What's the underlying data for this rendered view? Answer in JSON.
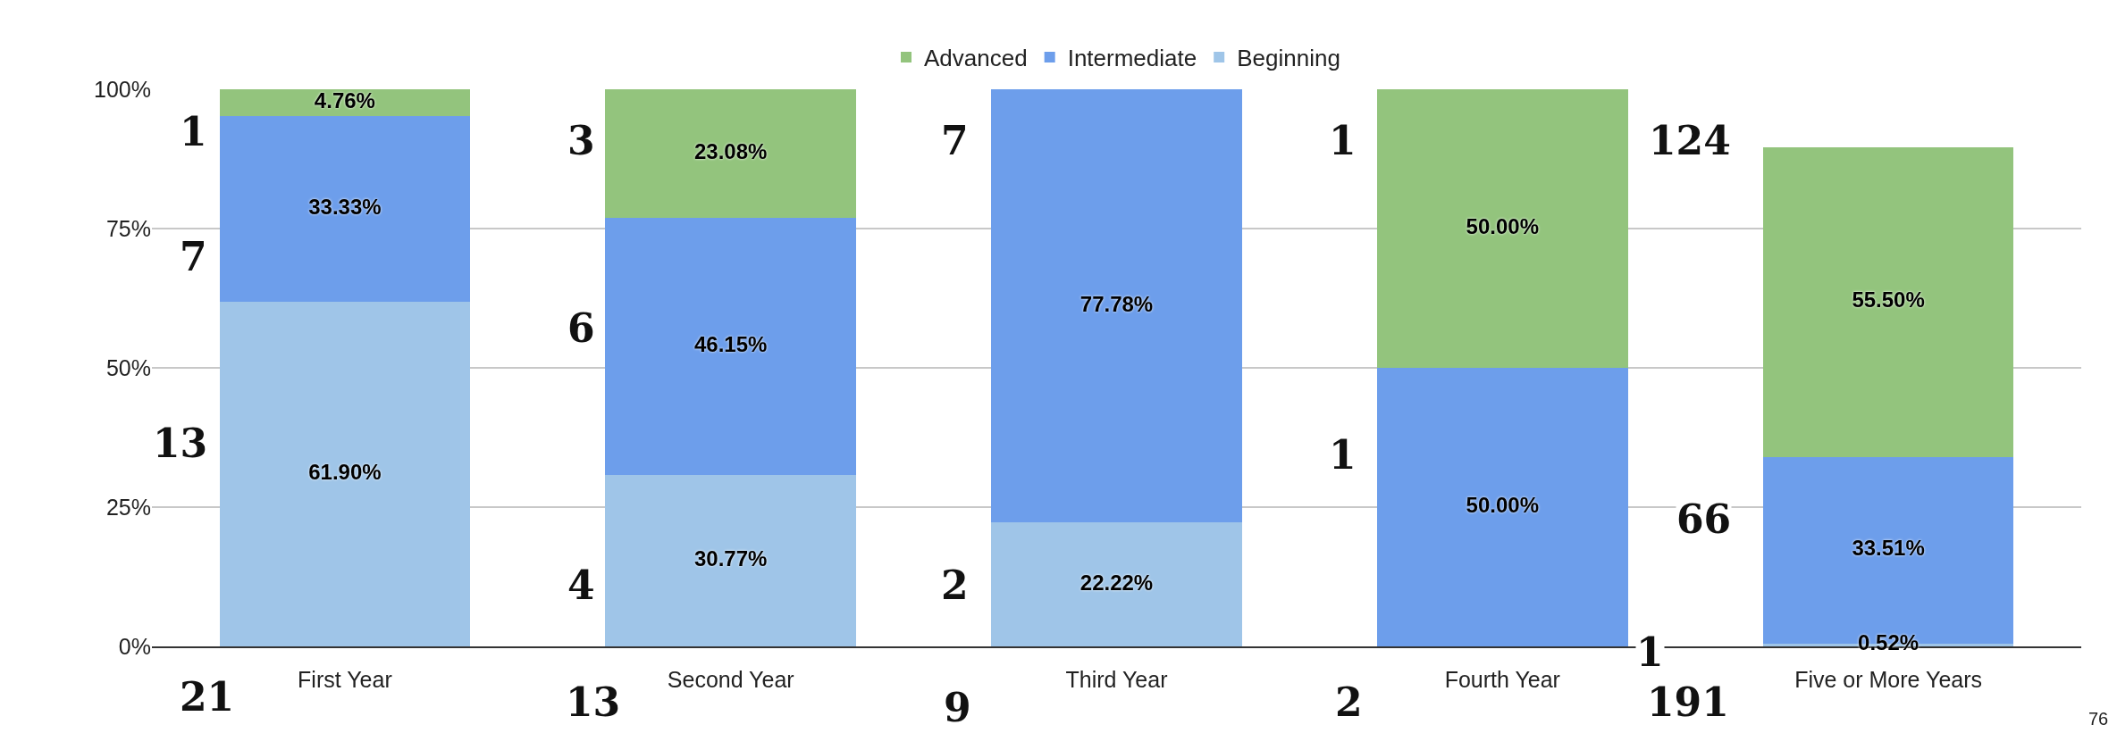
{
  "chart_data": {
    "type": "bar",
    "stacked": true,
    "categories": [
      "First Year",
      "Second Year",
      "Third Year",
      "Fourth Year",
      "Five or More Years"
    ],
    "series": [
      {
        "name": "Beginning",
        "color": "#9fc5e8",
        "values": [
          61.9,
          30.77,
          22.22,
          0,
          0.52
        ],
        "value_labels": [
          "61.90%",
          "30.77%",
          "22.22%",
          null,
          "0.52%"
        ]
      },
      {
        "name": "Intermediate",
        "color": "#6d9eeb",
        "values": [
          33.33,
          46.15,
          77.78,
          50,
          33.51
        ],
        "value_labels": [
          "33.33%",
          "46.15%",
          "77.78%",
          "50.00%",
          "33.51%"
        ]
      },
      {
        "name": "Advanced",
        "color": "#93c47d",
        "values": [
          4.76,
          23.08,
          0,
          50,
          55.5
        ],
        "value_labels": [
          "4.76%",
          "23.08%",
          null,
          "50.00%",
          "55.50%"
        ]
      }
    ],
    "ylim": [
      0,
      100
    ],
    "yticks": [
      {
        "value": 0,
        "label": "0%"
      },
      {
        "value": 25,
        "label": "25%"
      },
      {
        "value": 50,
        "label": "50%"
      },
      {
        "value": 75,
        "label": "75%"
      },
      {
        "value": 100,
        "label": "100%"
      }
    ],
    "grid": "y",
    "legend": "top",
    "annotations": [
      "1",
      "7",
      "13",
      "21",
      "3",
      "6",
      "4",
      "13",
      "7",
      "2",
      "9",
      "1",
      "1",
      "2",
      "124",
      "66",
      "1",
      "191",
      "76"
    ]
  }
}
